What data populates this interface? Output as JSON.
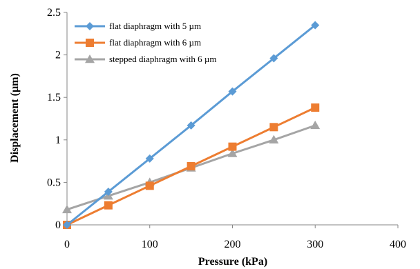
{
  "chart_data": {
    "type": "line",
    "xlabel": "Pressure (kPa)",
    "ylabel": "Displacement (µm)",
    "xlim": [
      0,
      400
    ],
    "ylim": [
      0,
      2.5
    ],
    "xticks": [
      0,
      100,
      200,
      300,
      400
    ],
    "yticks": [
      0,
      0.5,
      1,
      1.5,
      2,
      2.5
    ],
    "xtick_labels": [
      "0",
      "100",
      "200",
      "300",
      "400"
    ],
    "ytick_labels": [
      "0",
      "0.5",
      "1",
      "1.5",
      "2",
      "2.5"
    ],
    "grid": false,
    "legend_position": "top-left",
    "series": [
      {
        "name": "flat diaphragm with 5 µm",
        "color": "#5b9bd5",
        "marker": "diamond",
        "x": [
          0,
          50,
          100,
          150,
          200,
          250,
          300
        ],
        "y": [
          0,
          0.39,
          0.78,
          1.17,
          1.57,
          1.96,
          2.35
        ]
      },
      {
        "name": "flat diaphragm with 6 µm",
        "color": "#ed7d31",
        "marker": "square",
        "x": [
          0,
          50,
          100,
          150,
          200,
          250,
          300
        ],
        "y": [
          0,
          0.23,
          0.46,
          0.69,
          0.92,
          1.15,
          1.38
        ]
      },
      {
        "name": "stepped diaphragm with 6 µm",
        "color": "#a5a5a5",
        "marker": "triangle",
        "x": [
          0,
          50,
          100,
          150,
          200,
          250,
          300
        ],
        "y": [
          0.18,
          0.34,
          0.5,
          0.67,
          0.84,
          1.0,
          1.17
        ]
      }
    ]
  }
}
